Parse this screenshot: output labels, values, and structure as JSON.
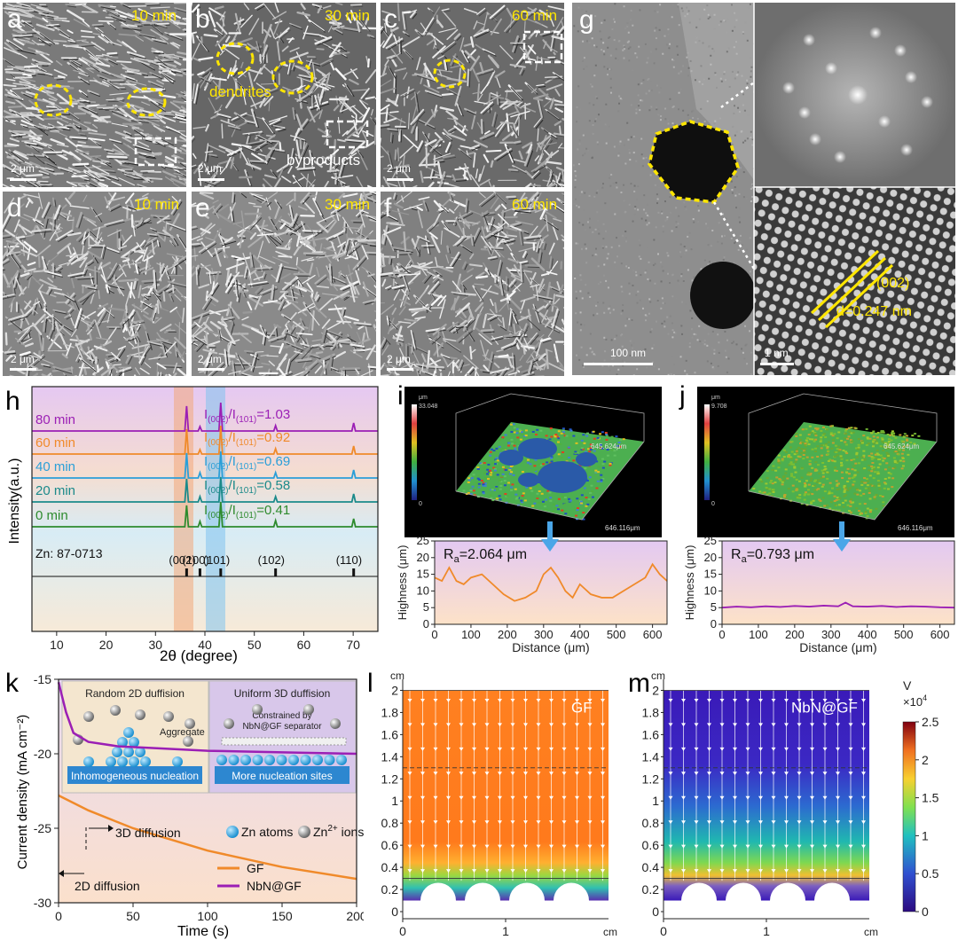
{
  "panels": {
    "a": {
      "letter": "a",
      "time": "10 min",
      "scale": "2 μm"
    },
    "b": {
      "letter": "b",
      "time": "30 min",
      "scale": "2 μm",
      "label1": "dendrites",
      "label2": "byproducts"
    },
    "c": {
      "letter": "c",
      "time": "60 min",
      "scale": "2 μm"
    },
    "d": {
      "letter": "d",
      "time": "10 min",
      "scale": "2 μm"
    },
    "e": {
      "letter": "e",
      "time": "30 min",
      "scale": "2 μm"
    },
    "f": {
      "letter": "f",
      "time": "60 min",
      "scale": "2 μm"
    },
    "g": {
      "letter": "g",
      "scale_main": "100 nm",
      "scale_hr": "1 nm",
      "plane": "(002)",
      "dspacing": "d=0.247 nm"
    }
  },
  "chart_h": {
    "letter": "h",
    "type": "line",
    "xlabel": "2θ (degree)",
    "ylabel": "Intensity(a.u.)",
    "xlim": [
      5,
      75
    ],
    "xticks": [
      10,
      20,
      30,
      40,
      50,
      60,
      70
    ],
    "series": [
      {
        "name": "80 min",
        "ratio": "=1.03",
        "color": "#9b1fb5"
      },
      {
        "name": "60 min",
        "ratio": "=0.92",
        "color": "#f08a2a"
      },
      {
        "name": "40 min",
        "ratio": "=0.69",
        "color": "#2b9fd8"
      },
      {
        "name": "20 min",
        "ratio": "=0.58",
        "color": "#1b8a8a"
      },
      {
        "name": "0 min",
        "ratio": "=0.41",
        "color": "#2e8b2e"
      }
    ],
    "peaks": [
      36.3,
      39.0,
      43.2,
      54.3,
      70.1
    ],
    "ratio_prefix": "I",
    "ratio_sub1": "(002)",
    "ratio_mid": "/I",
    "ratio_sub2": "(101)",
    "reference": "Zn: 87-0713",
    "ref_peaks": [
      {
        "x": 36.3,
        "label": "(002)"
      },
      {
        "x": 39.0,
        "label": "(100)"
      },
      {
        "x": 43.2,
        "label": "(101)"
      },
      {
        "x": 54.3,
        "label": "(102)"
      },
      {
        "x": 70.1,
        "label": "(110)"
      }
    ]
  },
  "chart_i": {
    "letter": "i",
    "type": "line",
    "xlabel": "Distance (μm)",
    "ylabel": "Highness (μm)",
    "xlim": [
      0,
      640
    ],
    "ylim": [
      0,
      25
    ],
    "xticks": [
      0,
      100,
      200,
      300,
      400,
      500,
      600
    ],
    "yticks": [
      0,
      5,
      10,
      15,
      20,
      25
    ],
    "ra": "=2.064 μm",
    "ra_prefix": "R",
    "ra_sub": "a",
    "color": "#f08a2a",
    "map_max": "33.048",
    "map_unit": "μm",
    "map_min": "0",
    "dim1": "645.624μm",
    "dim2": "646.116μm",
    "x": [
      0,
      20,
      40,
      60,
      80,
      100,
      130,
      160,
      190,
      220,
      250,
      280,
      300,
      320,
      340,
      360,
      380,
      400,
      430,
      460,
      490,
      520,
      550,
      580,
      600,
      620,
      640
    ],
    "y": [
      14,
      13,
      17,
      13,
      12,
      14,
      15,
      12,
      9,
      7,
      8,
      10,
      15,
      17,
      14,
      10,
      8,
      12,
      9,
      8,
      8,
      10,
      12,
      14,
      18,
      15,
      13
    ]
  },
  "chart_j": {
    "letter": "j",
    "type": "line",
    "xlabel": "Distance (μm)",
    "ylabel": "Highness (μm)",
    "xlim": [
      0,
      640
    ],
    "ylim": [
      0,
      25
    ],
    "xticks": [
      0,
      100,
      200,
      300,
      400,
      500,
      600
    ],
    "yticks": [
      0,
      5,
      10,
      15,
      20,
      25
    ],
    "ra": "=0.793 μm",
    "ra_prefix": "R",
    "ra_sub": "a",
    "color": "#9b1fb5",
    "map_max": "9.708",
    "map_unit": "μm",
    "map_min": "0",
    "dim1": "645.624μm",
    "dim2": "646.116μm",
    "x": [
      0,
      40,
      80,
      120,
      160,
      200,
      240,
      280,
      320,
      340,
      360,
      400,
      440,
      480,
      520,
      560,
      600,
      640
    ],
    "y": [
      5,
      5.3,
      5.1,
      5.4,
      5.2,
      5.5,
      5.3,
      5.6,
      5.4,
      6.5,
      5.4,
      5.3,
      5.5,
      5.2,
      5.4,
      5.3,
      5.1,
      5
    ]
  },
  "chart_k": {
    "letter": "k",
    "type": "line",
    "xlabel": "Time (s)",
    "ylabel": "Current density (mA cm⁻²)",
    "xlim": [
      0,
      200
    ],
    "ylim": [
      -30,
      -15
    ],
    "xticks": [
      0,
      50,
      100,
      150,
      200
    ],
    "yticks": [
      -15,
      -20,
      -25,
      -30
    ],
    "series": [
      {
        "name": "GF",
        "color": "#f08a2a",
        "x": [
          0,
          20,
          50,
          100,
          150,
          200
        ],
        "y": [
          -22.8,
          -23.8,
          -25,
          -26.5,
          -27.6,
          -28.4
        ]
      },
      {
        "name": "NbN@GF",
        "color": "#9b1fb5",
        "x": [
          0,
          5,
          10,
          20,
          40,
          60,
          100,
          150,
          200
        ],
        "y": [
          -15.2,
          -17.2,
          -18.6,
          -19.2,
          -19.5,
          -19.6,
          -19.8,
          -19.9,
          -20
        ]
      }
    ],
    "ann_3d": "3D diffusion",
    "ann_2d": "2D diffusion",
    "legend_zn": "Zn atoms",
    "legend_ion": "Zn",
    "legend_ion_sup": "2+",
    "legend_ion_tail": " ions",
    "box1_title": "Random 2D duffision",
    "box1_mid": "Aggregate",
    "box1_bottom": "Inhomogeneous nucleation",
    "box2_title": "Uniform 3D duffision",
    "box2_mid1": "Constrained by",
    "box2_mid2": "NbN@GF separator",
    "box2_bottom": "More nucleation sites"
  },
  "chart_l": {
    "letter": "l",
    "label": "GF",
    "unit": "cm",
    "yticks": [
      "2",
      "1.8",
      "1.6",
      "1.4",
      "1.2",
      "1",
      "0.8",
      "0.6",
      "0.4",
      "0.2",
      "0"
    ],
    "xticks": [
      "0",
      "1"
    ]
  },
  "chart_m": {
    "letter": "m",
    "label": "NbN@GF",
    "unit": "cm",
    "yticks": [
      "2",
      "1.8",
      "1.6",
      "1.4",
      "1.2",
      "1",
      "0.8",
      "0.6",
      "0.4",
      "0.2",
      "0"
    ],
    "xticks": [
      "0",
      "1"
    ],
    "cbar_unit": "V",
    "cbar_scale": "×10",
    "cbar_scale_sup": "4",
    "cbar_ticks": [
      "2.5",
      "2",
      "1.5",
      "1",
      "0.5",
      "0"
    ]
  },
  "colors": {
    "yellow": "#ffe600",
    "orange": "#f08a2a",
    "purple": "#9b1fb5",
    "blue": "#2b9fd8"
  }
}
